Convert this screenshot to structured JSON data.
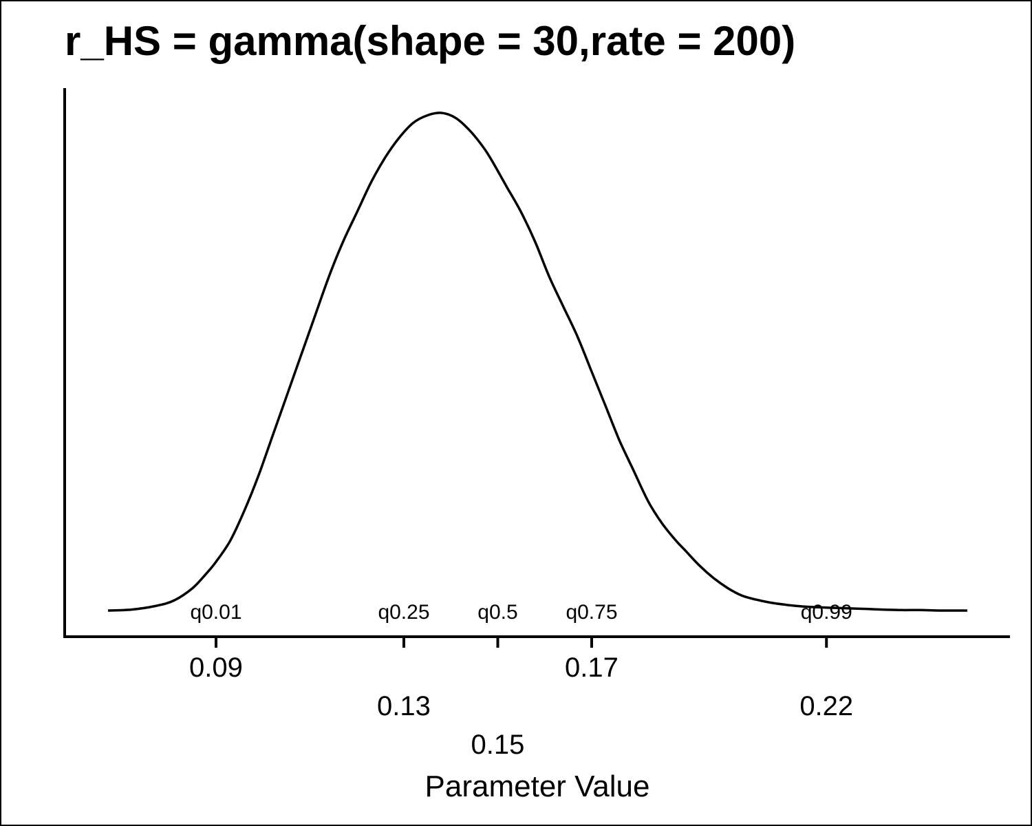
{
  "chart_data": {
    "type": "line",
    "title": "r_HS = gamma(shape = 30,rate = 200)",
    "xlabel": "Parameter Value",
    "ylabel": "",
    "xlim": [
      0.067,
      0.25
    ],
    "ylim": [
      0,
      1
    ],
    "grid": false,
    "density_curve": {
      "x": [
        0.067,
        0.072,
        0.077,
        0.081,
        0.085,
        0.088,
        0.09,
        0.093,
        0.096,
        0.099,
        0.102,
        0.105,
        0.108,
        0.111,
        0.114,
        0.117,
        0.12,
        0.123,
        0.126,
        0.129,
        0.132,
        0.135,
        0.138,
        0.141,
        0.144,
        0.147,
        0.149,
        0.152,
        0.155,
        0.158,
        0.161,
        0.164,
        0.167,
        0.17,
        0.173,
        0.176,
        0.179,
        0.182,
        0.185,
        0.188,
        0.19,
        0.193,
        0.196,
        0.199,
        0.202,
        0.205,
        0.208,
        0.211,
        0.214,
        0.217,
        0.22,
        0.223,
        0.226,
        0.229,
        0.232,
        0.236,
        0.24,
        0.244,
        0.248,
        0.25
      ],
      "y": [
        0.0,
        0.002,
        0.009,
        0.02,
        0.045,
        0.075,
        0.098,
        0.14,
        0.2,
        0.27,
        0.35,
        0.43,
        0.51,
        0.59,
        0.67,
        0.74,
        0.8,
        0.86,
        0.91,
        0.95,
        0.98,
        0.995,
        1.0,
        0.99,
        0.965,
        0.93,
        0.9,
        0.85,
        0.8,
        0.74,
        0.67,
        0.61,
        0.55,
        0.48,
        0.41,
        0.34,
        0.28,
        0.22,
        0.175,
        0.14,
        0.12,
        0.09,
        0.065,
        0.045,
        0.03,
        0.022,
        0.016,
        0.012,
        0.009,
        0.007,
        0.006,
        0.005,
        0.004,
        0.003,
        0.002,
        0.001,
        0.001,
        0.0,
        0.0,
        0.0
      ]
    },
    "quantiles": [
      {
        "label": "q0.01",
        "value": 0.09,
        "tick_label": "0.09",
        "row": 0
      },
      {
        "label": "q0.25",
        "value": 0.13,
        "tick_label": "0.13",
        "row": 1
      },
      {
        "label": "q0.5",
        "value": 0.15,
        "tick_label": "0.15",
        "row": 2
      },
      {
        "label": "q0.75",
        "value": 0.17,
        "tick_label": "0.17",
        "row": 0
      },
      {
        "label": "q0.99",
        "value": 0.22,
        "tick_label": "0.22",
        "row": 1
      }
    ]
  }
}
